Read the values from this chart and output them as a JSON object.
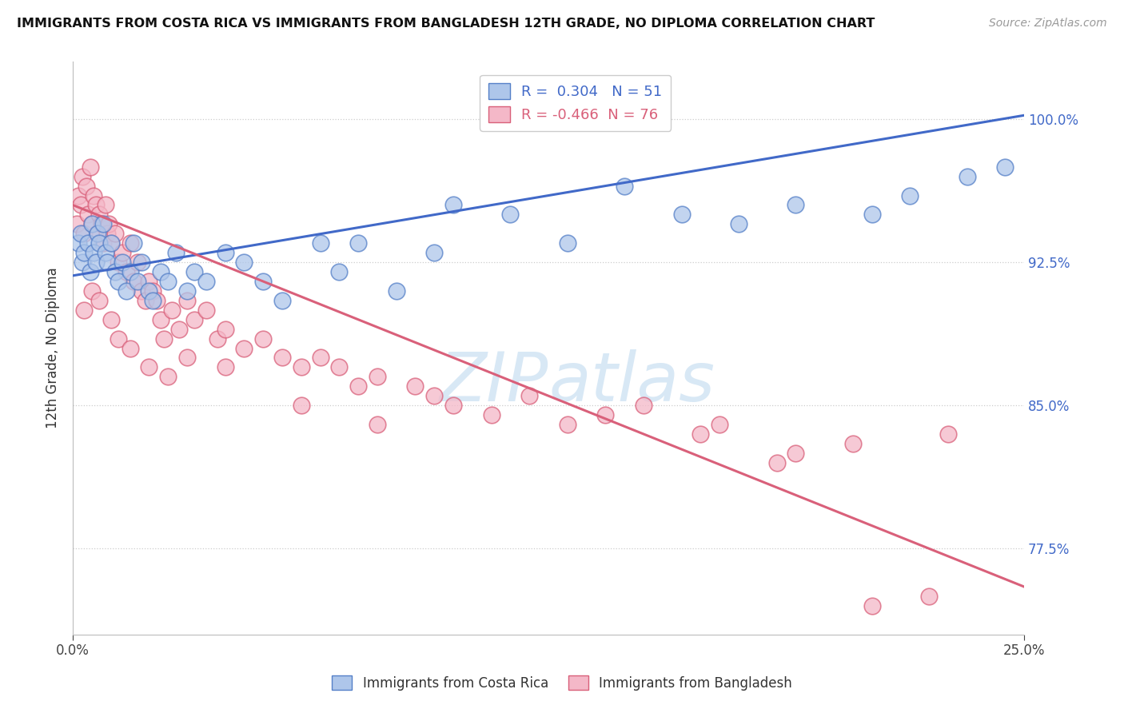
{
  "title": "IMMIGRANTS FROM COSTA RICA VS IMMIGRANTS FROM BANGLADESH 12TH GRADE, NO DIPLOMA CORRELATION CHART",
  "source": "Source: ZipAtlas.com",
  "ylabel": "12th Grade, No Diploma",
  "ylabel_right_labels": [
    "77.5%",
    "85.0%",
    "92.5%",
    "100.0%"
  ],
  "ylabel_right_ticks": [
    77.5,
    85.0,
    92.5,
    100.0
  ],
  "blue_label": "Immigrants from Costa Rica",
  "pink_label": "Immigrants from Bangladesh",
  "blue_R": 0.304,
  "blue_N": 51,
  "pink_R": -0.466,
  "pink_N": 76,
  "blue_fill": "#aec6ea",
  "pink_fill": "#f4b8c8",
  "blue_edge": "#5580c8",
  "pink_edge": "#d9607a",
  "blue_line": "#4169c8",
  "pink_line": "#d9607a",
  "watermark_color": "#d8e8f5",
  "xlim": [
    0.0,
    25.0
  ],
  "ylim": [
    73.0,
    103.0
  ],
  "grid_ticks": [
    77.5,
    85.0,
    92.5,
    100.0
  ],
  "blue_trend_x": [
    0.0,
    25.0
  ],
  "blue_trend_y": [
    91.8,
    100.2
  ],
  "pink_trend_x": [
    0.0,
    25.0
  ],
  "pink_trend_y": [
    95.5,
    75.5
  ],
  "blue_x": [
    0.15,
    0.2,
    0.25,
    0.3,
    0.4,
    0.45,
    0.5,
    0.55,
    0.6,
    0.65,
    0.7,
    0.8,
    0.85,
    0.9,
    1.0,
    1.1,
    1.2,
    1.3,
    1.4,
    1.5,
    1.6,
    1.7,
    1.8,
    2.0,
    2.1,
    2.3,
    2.5,
    2.7,
    3.0,
    3.2,
    3.5,
    4.0,
    4.5,
    5.0,
    5.5,
    6.5,
    7.0,
    7.5,
    8.5,
    9.5,
    10.0,
    11.5,
    13.0,
    14.5,
    16.0,
    17.5,
    19.0,
    21.0,
    22.0,
    23.5,
    24.5
  ],
  "blue_y": [
    93.5,
    94.0,
    92.5,
    93.0,
    93.5,
    92.0,
    94.5,
    93.0,
    92.5,
    94.0,
    93.5,
    94.5,
    93.0,
    92.5,
    93.5,
    92.0,
    91.5,
    92.5,
    91.0,
    92.0,
    93.5,
    91.5,
    92.5,
    91.0,
    90.5,
    92.0,
    91.5,
    93.0,
    91.0,
    92.0,
    91.5,
    93.0,
    92.5,
    91.5,
    90.5,
    93.5,
    92.0,
    93.5,
    91.0,
    93.0,
    95.5,
    95.0,
    93.5,
    96.5,
    95.0,
    94.5,
    95.5,
    95.0,
    96.0,
    97.0,
    97.5
  ],
  "pink_x": [
    0.1,
    0.15,
    0.2,
    0.25,
    0.3,
    0.35,
    0.4,
    0.45,
    0.5,
    0.55,
    0.6,
    0.65,
    0.7,
    0.75,
    0.8,
    0.85,
    0.9,
    0.95,
    1.0,
    1.1,
    1.2,
    1.3,
    1.4,
    1.5,
    1.6,
    1.7,
    1.8,
    1.9,
    2.0,
    2.1,
    2.2,
    2.3,
    2.4,
    2.6,
    2.8,
    3.0,
    3.2,
    3.5,
    3.8,
    4.0,
    4.5,
    5.0,
    5.5,
    6.0,
    6.5,
    7.0,
    7.5,
    8.0,
    9.0,
    9.5,
    10.0,
    11.0,
    12.0,
    13.0,
    14.0,
    15.0,
    16.5,
    17.0,
    18.5,
    19.0,
    20.5,
    21.0,
    22.5,
    23.0,
    0.3,
    0.5,
    0.7,
    1.0,
    1.2,
    1.5,
    2.0,
    2.5,
    3.0,
    4.0,
    6.0,
    8.0
  ],
  "pink_y": [
    94.5,
    96.0,
    95.5,
    97.0,
    94.0,
    96.5,
    95.0,
    97.5,
    94.5,
    96.0,
    95.5,
    94.0,
    95.0,
    94.5,
    93.5,
    95.5,
    94.0,
    94.5,
    93.5,
    94.0,
    92.5,
    93.0,
    92.0,
    93.5,
    91.5,
    92.5,
    91.0,
    90.5,
    91.5,
    91.0,
    90.5,
    89.5,
    88.5,
    90.0,
    89.0,
    90.5,
    89.5,
    90.0,
    88.5,
    89.0,
    88.0,
    88.5,
    87.5,
    87.0,
    87.5,
    87.0,
    86.0,
    86.5,
    86.0,
    85.5,
    85.0,
    84.5,
    85.5,
    84.0,
    84.5,
    85.0,
    83.5,
    84.0,
    82.0,
    82.5,
    83.0,
    74.5,
    75.0,
    83.5,
    90.0,
    91.0,
    90.5,
    89.5,
    88.5,
    88.0,
    87.0,
    86.5,
    87.5,
    87.0,
    85.0,
    84.0
  ]
}
